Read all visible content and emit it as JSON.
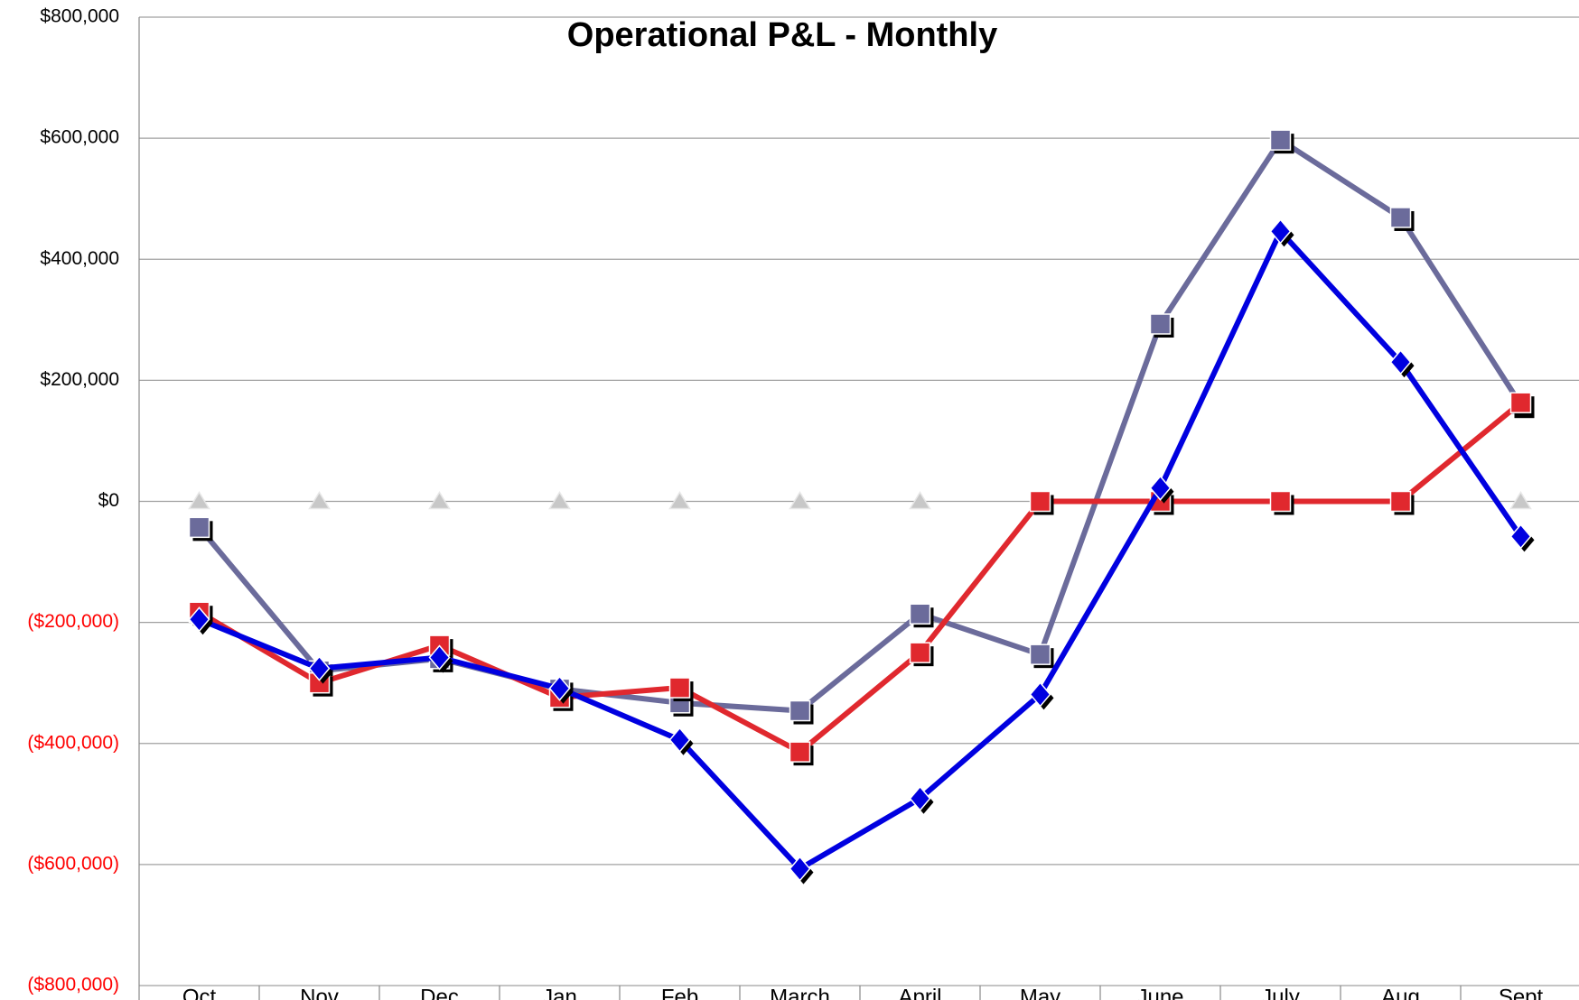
{
  "chart_data": {
    "type": "line",
    "title": "Operational P&L - Monthly",
    "categories": [
      "Oct",
      "Nov",
      "Dec",
      "Jan",
      "Feb",
      "March",
      "April",
      "May",
      "June",
      "July",
      "Aug",
      "Sept"
    ],
    "series": [
      {
        "color": "#c8c8c8",
        "marker": "triangle",
        "values": [
          0,
          0,
          0,
          0,
          0,
          0,
          0,
          0,
          0,
          0,
          0,
          0
        ]
      },
      {
        "color": "#6b6b9b",
        "marker": "square",
        "values": [
          -43000,
          -280000,
          -260000,
          -310000,
          -333000,
          -346000,
          -186000,
          -253000,
          293000,
          597000,
          469000,
          160000
        ]
      },
      {
        "color": "#e0282e",
        "marker": "square",
        "values": [
          -183000,
          -300000,
          -238000,
          -324000,
          -308000,
          -414000,
          -250000,
          0,
          0,
          0,
          0,
          163000
        ]
      },
      {
        "color": "#0000e0",
        "marker": "diamond",
        "values": [
          -195000,
          -276000,
          -258000,
          -309000,
          -394000,
          -607000,
          -491000,
          -319000,
          22000,
          446000,
          230000,
          -58000
        ]
      }
    ],
    "ylim": [
      -800000,
      800000
    ],
    "yticks": [
      {
        "value": -800000,
        "label": "($800,000)"
      },
      {
        "value": -600000,
        "label": "($600,000)"
      },
      {
        "value": -400000,
        "label": "($400,000)"
      },
      {
        "value": -200000,
        "label": "($200,000)"
      },
      {
        "value": 0,
        "label": "$0"
      },
      {
        "value": 200000,
        "label": "$200,000"
      },
      {
        "value": 400000,
        "label": "$400,000"
      },
      {
        "value": 600000,
        "label": "$600,000"
      },
      {
        "value": 800000,
        "label": "$800,000"
      }
    ],
    "negative_label_color": "#ff0000",
    "grid": true
  }
}
